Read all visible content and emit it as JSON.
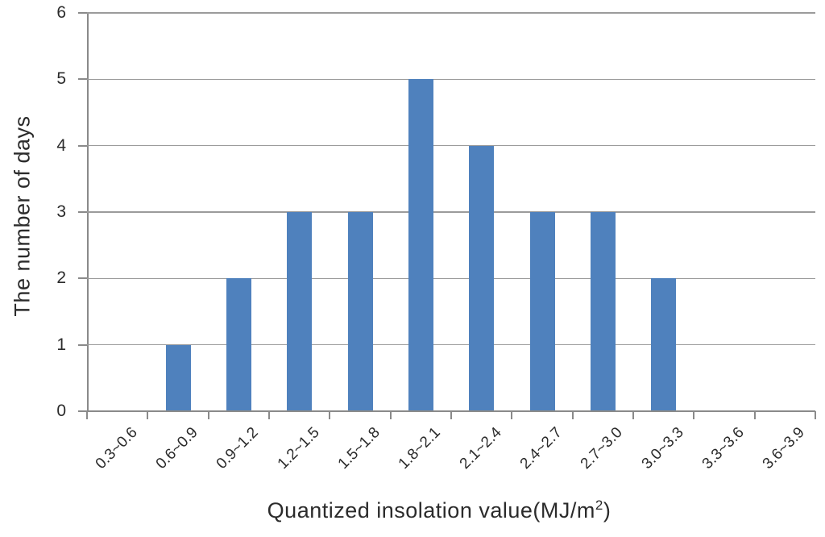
{
  "chart_data": {
    "type": "bar",
    "title": "",
    "categories": [
      "0.3~0.6",
      "0.6~0.9",
      "0.9~1.2",
      "1.2~1.5",
      "1.5~1.8",
      "1.8~2.1",
      "2.1~2.4",
      "2.4~2.7",
      "2.7~3.0",
      "3.0~3.3",
      "3.3~3.6",
      "3.6~3.9"
    ],
    "values": [
      0,
      1,
      2,
      3,
      3,
      5,
      4,
      3,
      3,
      2,
      0,
      0
    ],
    "xlabel": "Quantized insolation value(MJ/m²)",
    "xlabel_parts": {
      "text": "Quantized insolation value(MJ/m",
      "sup": "2",
      "close": ")"
    },
    "ylabel": "The number of days",
    "ylim": [
      0,
      6
    ],
    "yticks": [
      0,
      1,
      2,
      3,
      4,
      5,
      6
    ],
    "grid": "horizontal-on",
    "legend": "none",
    "bar_color": "#4F81BD"
  },
  "colors": {
    "bar": "#4F81BD",
    "gridline": "#9b9b9b",
    "axis": "#8a8a8a",
    "text": "#2b2b2b",
    "background": "#ffffff"
  }
}
